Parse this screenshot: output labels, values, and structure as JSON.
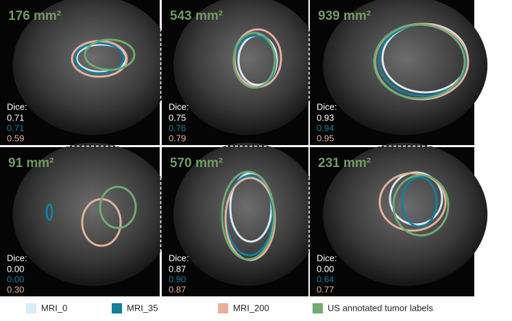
{
  "panels": [
    {
      "area": "176 mm²",
      "dice_label": "Dice:",
      "dice": [
        "0.71",
        "0.71",
        "0.59"
      ]
    },
    {
      "area": "543 mm²",
      "dice_label": "Dice:",
      "dice": [
        "0.75",
        "0.76",
        "0.79"
      ]
    },
    {
      "area": "939 mm²",
      "dice_label": "Dice:",
      "dice": [
        "0.93",
        "0.94",
        "0.95"
      ]
    },
    {
      "area": "91 mm²",
      "dice_label": "Dice:",
      "dice": [
        "0.00",
        "0.00",
        "0.30"
      ]
    },
    {
      "area": "570 mm²",
      "dice_label": "Dice:",
      "dice": [
        "0.87",
        "0.90",
        "0.87"
      ]
    },
    {
      "area": "231 mm²",
      "dice_label": "Dice:",
      "dice": [
        "0.00",
        "0.64",
        "0.77"
      ]
    }
  ],
  "legend": [
    {
      "label": "MRI_0",
      "color": "#d6ecf6"
    },
    {
      "label": "MRI_35",
      "color": "#137f9f"
    },
    {
      "label": "MRI_200",
      "color": "#e8b09b"
    },
    {
      "label": "US annotated tumor labels",
      "color": "#6fab72"
    }
  ]
}
